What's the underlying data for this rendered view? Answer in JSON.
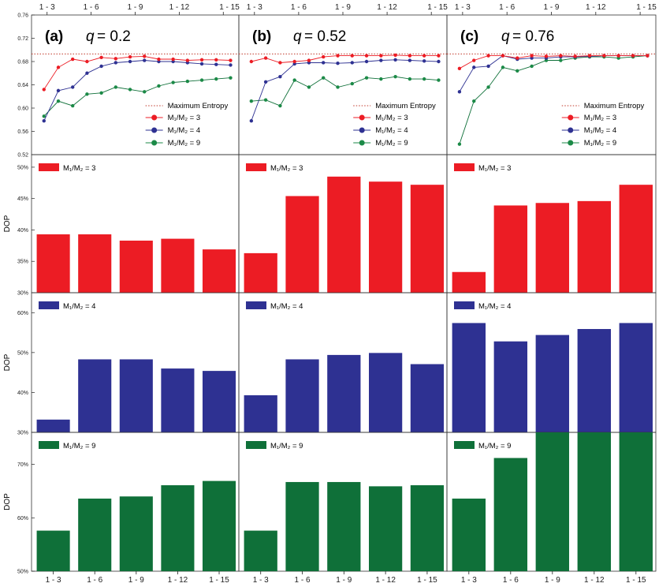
{
  "chart_data": {
    "type": "panel-figure",
    "x_categories": [
      "1 - 3",
      "1 - 6",
      "1 - 9",
      "1 - 12",
      "1 - 15"
    ],
    "line_x_ticks": [
      "1 - 3",
      "1 - 6",
      "1 - 9",
      "1 - 12",
      "1 - 15"
    ],
    "line_ylim": [
      0.52,
      0.76
    ],
    "line_yticks": [
      "0.52",
      "0.56",
      "0.60",
      "0.64",
      "0.68",
      "0.72",
      "0.76"
    ],
    "line_ytick_values": [
      0.52,
      0.56,
      0.6,
      0.64,
      0.68,
      0.72,
      0.76
    ],
    "max_entropy_value": 0.693,
    "legend_labels": {
      "max_entropy": "Maximum Entropy",
      "s3": "M₁/M₂ = 3",
      "s4": "M₁/M₂ = 4",
      "s9": "M₁/M₂ = 9"
    },
    "colors": {
      "s3": "#ec1c24",
      "s4": "#2e3192",
      "s9": "#0f7039",
      "s9_marker": "#1b8a47",
      "max_entropy": "#c0392b"
    },
    "panels": [
      {
        "letter": "(a)",
        "q_label": "q",
        "q_value": "= 0.2",
        "line_series": {
          "s3": [
            0.632,
            0.67,
            0.684,
            0.68,
            0.687,
            0.685,
            0.688,
            0.689,
            0.684,
            0.684,
            0.682,
            0.683,
            0.683,
            0.682
          ],
          "s4": [
            0.578,
            0.63,
            0.636,
            0.66,
            0.672,
            0.678,
            0.68,
            0.682,
            0.68,
            0.68,
            0.678,
            0.676,
            0.675,
            0.674
          ],
          "s9": [
            0.586,
            0.612,
            0.604,
            0.624,
            0.626,
            0.636,
            0.632,
            0.628,
            0.638,
            0.644,
            0.646,
            0.648,
            0.65,
            0.652
          ]
        },
        "bars": {
          "s3": {
            "ylim": [
              30,
              52
            ],
            "yticks": [
              "30%",
              "35%",
              "40%",
              "45%",
              "50%"
            ],
            "ytick_values": [
              30,
              35,
              40,
              45,
              50
            ],
            "values": [
              39.3,
              39.3,
              38.3,
              38.6,
              36.9
            ]
          },
          "s4": {
            "ylim": [
              30,
              65
            ],
            "yticks": [
              "30%",
              "40%",
              "50%",
              "60%"
            ],
            "ytick_values": [
              30,
              40,
              50,
              60
            ],
            "values": [
              33.2,
              48.3,
              48.3,
              46.0,
              45.4
            ]
          },
          "s9": {
            "ylim": [
              50,
              76
            ],
            "yticks": [
              "50%",
              "60%",
              "70%"
            ],
            "ytick_values": [
              50,
              60,
              70
            ],
            "values": [
              57.6,
              63.6,
              64.0,
              66.1,
              66.9
            ]
          }
        }
      },
      {
        "letter": "(b)",
        "q_label": "q",
        "q_value": "= 0.52",
        "line_series": {
          "s3": [
            0.68,
            0.686,
            0.678,
            0.68,
            0.682,
            0.688,
            0.69,
            0.69,
            0.69,
            0.69,
            0.691,
            0.69,
            0.69,
            0.69
          ],
          "s4": [
            0.578,
            0.645,
            0.654,
            0.676,
            0.678,
            0.678,
            0.677,
            0.678,
            0.68,
            0.682,
            0.683,
            0.682,
            0.681,
            0.68
          ],
          "s9": [
            0.612,
            0.614,
            0.604,
            0.648,
            0.636,
            0.652,
            0.636,
            0.642,
            0.652,
            0.65,
            0.654,
            0.65,
            0.65,
            0.648
          ]
        },
        "bars": {
          "s3": {
            "ylim": [
              30,
              52
            ],
            "yticks": [
              "30%",
              "35%",
              "40%",
              "45%",
              "50%"
            ],
            "ytick_values": [
              30,
              35,
              40,
              45,
              50
            ],
            "values": [
              36.3,
              45.4,
              48.5,
              47.7,
              47.2
            ]
          },
          "s4": {
            "ylim": [
              30,
              65
            ],
            "yticks": [
              "30%",
              "40%",
              "50%",
              "60%"
            ],
            "ytick_values": [
              30,
              40,
              50,
              60
            ],
            "values": [
              39.3,
              48.3,
              49.4,
              49.9,
              47.1
            ]
          },
          "s9": {
            "ylim": [
              50,
              76
            ],
            "yticks": [
              "50%",
              "60%",
              "70%"
            ],
            "ytick_values": [
              50,
              60,
              70
            ],
            "values": [
              57.6,
              66.7,
              66.7,
              65.9,
              66.1
            ]
          }
        }
      },
      {
        "letter": "(c)",
        "q_label": "q",
        "q_value": "= 0.76",
        "line_series": {
          "s3": [
            0.668,
            0.682,
            0.69,
            0.69,
            0.686,
            0.69,
            0.689,
            0.69,
            0.689,
            0.69,
            0.69,
            0.69,
            0.69,
            0.69
          ],
          "s4": [
            0.628,
            0.67,
            0.672,
            0.69,
            0.684,
            0.686,
            0.686,
            0.688,
            0.688,
            0.689,
            0.69,
            0.69,
            0.69,
            0.69
          ],
          "s9": [
            0.538,
            0.612,
            0.636,
            0.67,
            0.664,
            0.672,
            0.682,
            0.682,
            0.686,
            0.688,
            0.688,
            0.686,
            0.688,
            0.69
          ]
        },
        "bars": {
          "s3": {
            "ylim": [
              30,
              52
            ],
            "yticks": [
              "30%",
              "35%",
              "40%",
              "45%",
              "50%"
            ],
            "ytick_values": [
              30,
              35,
              40,
              45,
              50
            ],
            "values": [
              33.3,
              43.9,
              44.3,
              44.6,
              47.2
            ]
          },
          "s4": {
            "ylim": [
              30,
              65
            ],
            "yticks": [
              "30%",
              "40%",
              "50%",
              "60%"
            ],
            "ytick_values": [
              30,
              40,
              50,
              60
            ],
            "values": [
              57.4,
              52.8,
              54.4,
              55.9,
              57.4
            ]
          },
          "s9": {
            "ylim": [
              50,
              76
            ],
            "yticks": [
              "50%",
              "60%",
              "70%"
            ],
            "ytick_values": [
              50,
              60,
              70
            ],
            "values": [
              63.6,
              71.2,
              77.0,
              77.0,
              77.0
            ]
          }
        }
      }
    ],
    "bar_ylabel": "DOP",
    "bar_legend_labels": {
      "s3": "M₁/M₂ = 3",
      "s4": "M₁/M₂ = 4",
      "s9": "M₁/M₂ = 9"
    }
  }
}
